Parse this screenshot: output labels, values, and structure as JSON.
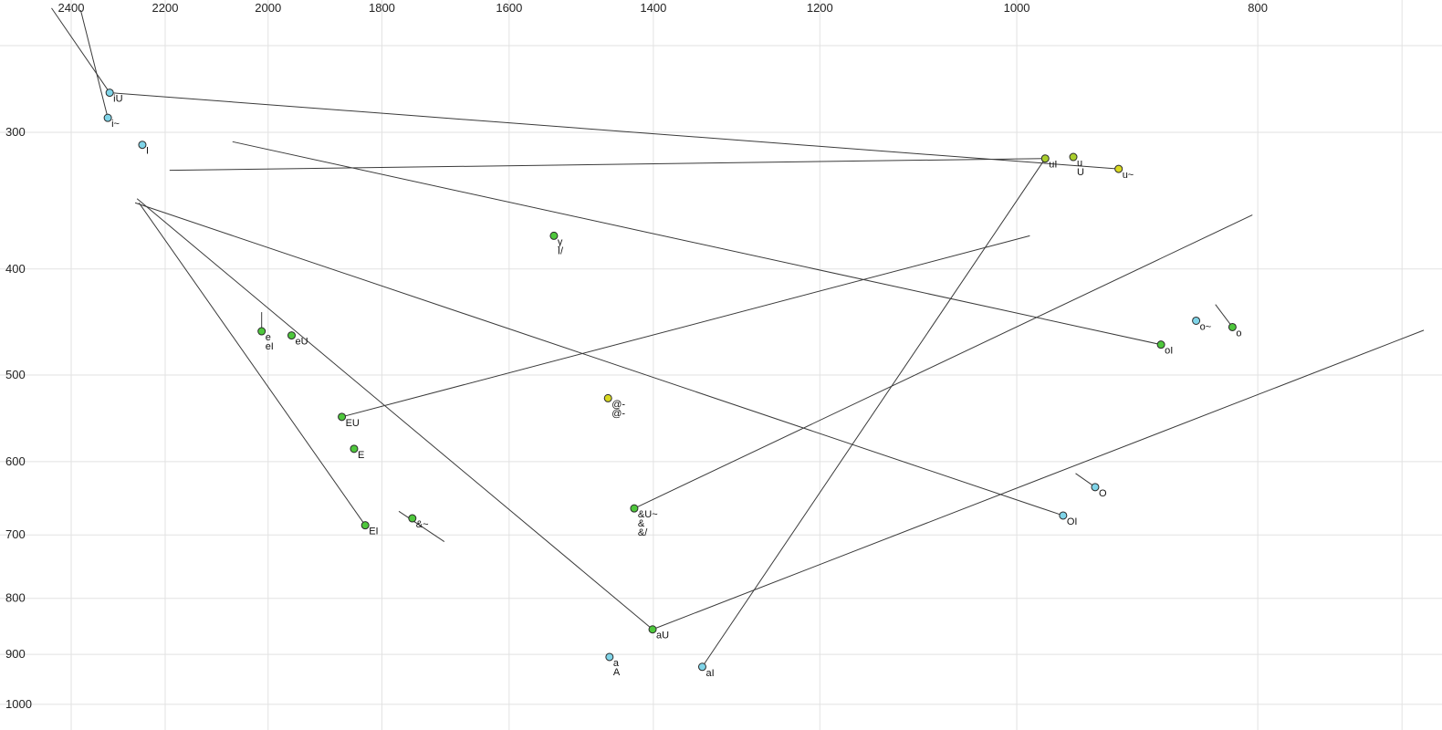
{
  "chart_data": {
    "type": "scatter",
    "title": "",
    "xlabel": "",
    "ylabel": "",
    "x_axis": {
      "ticks": [
        2400,
        2200,
        2000,
        1800,
        1600,
        1400,
        1200,
        1000,
        800
      ],
      "unlabeled_ticks": [
        700
      ],
      "scale": "log",
      "reversed": true,
      "range": [
        2500,
        680
      ]
    },
    "y_axis": {
      "ticks": [
        300,
        400,
        500,
        600,
        700,
        800,
        900,
        1000
      ],
      "unlabeled_ticks": [
        250
      ],
      "scale": "log",
      "reversed": true,
      "range": [
        225,
        1060
      ]
    },
    "grid": true,
    "legend": false,
    "points": [
      {
        "labels": [
          "iU"
        ],
        "f2": 2316,
        "f1": 276,
        "color": "cyan"
      },
      {
        "labels": [
          "i~"
        ],
        "f2": 2320,
        "f1": 291,
        "color": "cyan"
      },
      {
        "labels": [
          "I"
        ],
        "f2": 2247,
        "f1": 308,
        "color": "cyan"
      },
      {
        "labels": [
          "uI"
        ],
        "f2": 974,
        "f1": 317,
        "color": "yellowgreen"
      },
      {
        "labels": [
          "u",
          "U"
        ],
        "f2": 949,
        "f1": 316,
        "color": "yellowgreen"
      },
      {
        "labels": [
          "u~"
        ],
        "f2": 910,
        "f1": 324,
        "color": "yellow"
      },
      {
        "labels": [
          "y",
          "I/"
        ],
        "f2": 1535,
        "f1": 373,
        "color": "green"
      },
      {
        "labels": [
          "e",
          "eI"
        ],
        "f2": 2012,
        "f1": 456,
        "color": "green"
      },
      {
        "labels": [
          "eU"
        ],
        "f2": 1957,
        "f1": 460,
        "color": "green"
      },
      {
        "labels": [
          "EU"
        ],
        "f2": 1868,
        "f1": 546,
        "color": "green"
      },
      {
        "labels": [
          "E"
        ],
        "f2": 1847,
        "f1": 584,
        "color": "green"
      },
      {
        "labels": [
          "EI"
        ],
        "f2": 1828,
        "f1": 686,
        "color": "green"
      },
      {
        "labels": [
          "&~"
        ],
        "f2": 1750,
        "f1": 676,
        "color": "green"
      },
      {
        "labels": [
          "@-",
          "@-"
        ],
        "f2": 1460,
        "f1": 525,
        "color": "yellow"
      },
      {
        "labels": [
          "&U~",
          "&",
          "&/"
        ],
        "f2": 1425,
        "f1": 662,
        "color": "green"
      },
      {
        "labels": [
          "aU"
        ],
        "f2": 1401,
        "f1": 854,
        "color": "green"
      },
      {
        "labels": [
          "a",
          "A"
        ],
        "f2": 1458,
        "f1": 905,
        "color": "cyan"
      },
      {
        "labels": [
          "aI"
        ],
        "f2": 1338,
        "f1": 924,
        "color": "cyan"
      },
      {
        "labels": [
          "O"
        ],
        "f2": 930,
        "f1": 633,
        "color": "cyan"
      },
      {
        "labels": [
          "OI"
        ],
        "f2": 958,
        "f1": 672,
        "color": "cyan"
      },
      {
        "labels": [
          "oI"
        ],
        "f2": 875,
        "f1": 469,
        "color": "green"
      },
      {
        "labels": [
          "o~"
        ],
        "f2": 847,
        "f1": 446,
        "color": "cyan"
      },
      {
        "labels": [
          "o"
        ],
        "f2": 819,
        "f1": 452,
        "color": "green"
      }
    ],
    "segments": [
      [
        2444,
        231,
        2316,
        276
      ],
      [
        2379,
        232,
        2320,
        291
      ],
      [
        2316,
        276,
        910,
        324
      ],
      [
        2191,
        325,
        974,
        317
      ],
      [
        2067,
        306,
        875,
        469
      ],
      [
        2254,
        348,
        1828,
        686
      ],
      [
        2258,
        345,
        1401,
        854
      ],
      [
        2262,
        348,
        958,
        672
      ],
      [
        1868,
        546,
        988,
        373
      ],
      [
        1425,
        662,
        804,
        357
      ],
      [
        1401,
        854,
        686,
        455
      ],
      [
        1338,
        924,
        974,
        317
      ],
      [
        1772,
        666,
        1699,
        710
      ],
      [
        947,
        615,
        930,
        633
      ],
      [
        832,
        431,
        819,
        452
      ],
      [
        2012,
        438,
        2012,
        453
      ]
    ]
  },
  "colors": {
    "cyan": "#7fd4e8",
    "green": "#4ec73c",
    "yellowgreen": "#a9ce2c",
    "yellow": "#d9d921",
    "grid": "#e2e2e2",
    "line": "#3a3a3a",
    "point_stroke": "#2a2a2a"
  }
}
